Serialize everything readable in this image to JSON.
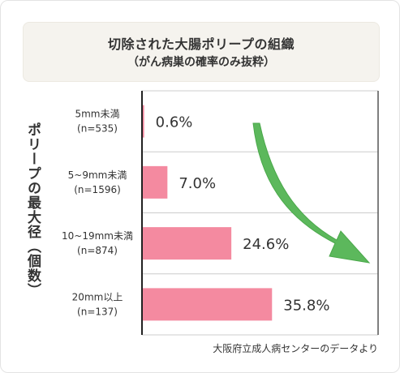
{
  "title": "切除された大腸ポリープの組織",
  "subtitle": "（がん病巣の確率のみ抜粋）",
  "source": "大阪府立成人病センターのデータより",
  "colors": {
    "bar": "#f48aa0",
    "arrow": "#5cb85c",
    "panel": "#f5f3ee",
    "grid": "#cccccc"
  },
  "chart_data": {
    "type": "bar",
    "orientation": "horizontal",
    "ylabel": "ポリープの最大径（個数）",
    "categories": [
      {
        "line1": "5mm未満",
        "line2": "(n=535)"
      },
      {
        "line1": "5~9mm未満",
        "line2": "(n=1596)"
      },
      {
        "line1": "10~19mm未満",
        "line2": "(n=874)"
      },
      {
        "line1": "20mm以上",
        "line2": "(n=137)"
      }
    ],
    "values": [
      0.6,
      7.0,
      24.6,
      35.8
    ],
    "value_labels": [
      "0.6%",
      "7.0%",
      "24.6%",
      "35.8%"
    ],
    "xlim": [
      0,
      65
    ],
    "grid": true,
    "annotation": "trend-arrow-down"
  }
}
